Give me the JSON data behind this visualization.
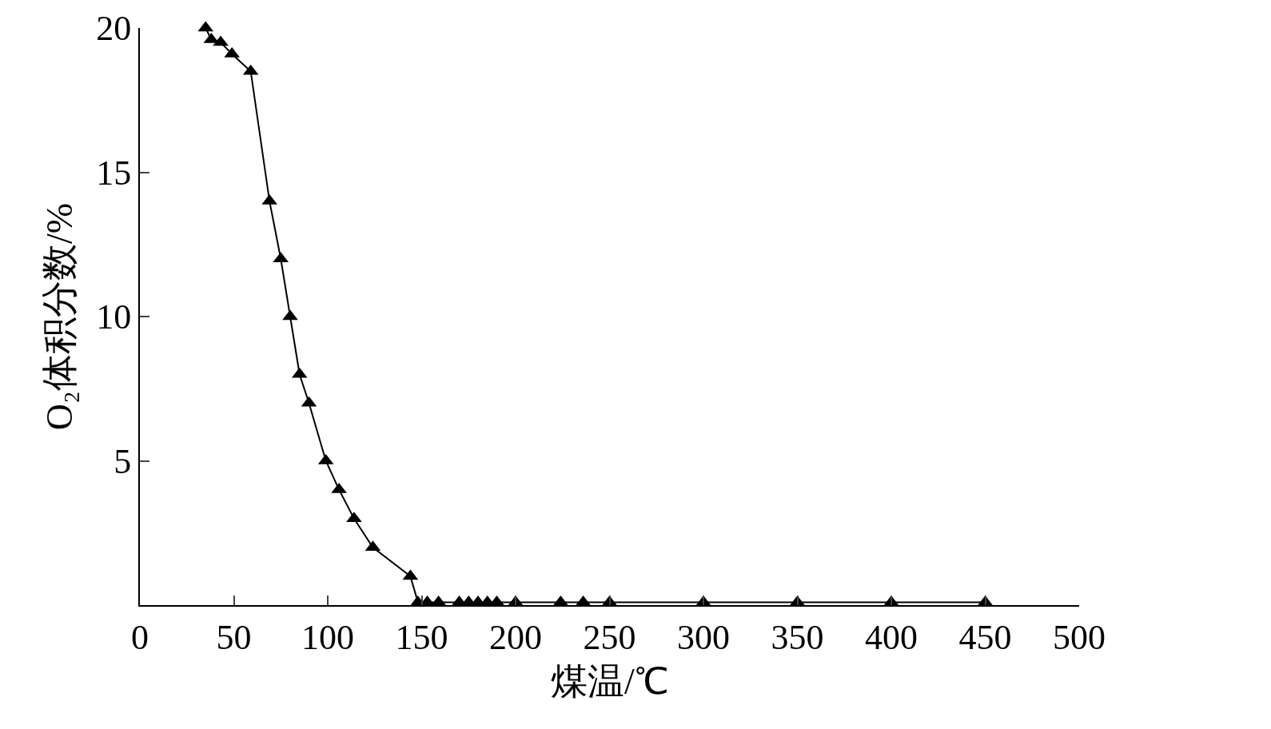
{
  "chart_data": {
    "type": "line",
    "xlabel": "煤温/℃",
    "ylabel": "O₂体积分数/%",
    "x": [
      35,
      38,
      43,
      49,
      59,
      69,
      75,
      80,
      85,
      90,
      99,
      106,
      114,
      124,
      144,
      148,
      153,
      159,
      170,
      175,
      180,
      185,
      190,
      200,
      224,
      236,
      250,
      300,
      350,
      400,
      450
    ],
    "series": [
      {
        "color": "#000000",
        "values": [
          20,
          19.6,
          19.5,
          19.1,
          18.5,
          14,
          12,
          10,
          8,
          7,
          5,
          4,
          3,
          2,
          1,
          0.1,
          0.1,
          0.1,
          0.1,
          0.1,
          0.1,
          0.1,
          0.1,
          0.1,
          0.1,
          0.1,
          0.1,
          0.1,
          0.1,
          0.1,
          0.1
        ]
      }
    ],
    "xlim": [
      0,
      500
    ],
    "xticks": [
      0,
      50,
      100,
      150,
      200,
      250,
      300,
      350,
      400,
      450,
      500
    ],
    "ylim": [
      0,
      20
    ],
    "yticks": [
      5,
      10,
      15,
      20
    ],
    "marker": "triangle",
    "line_style": "solid",
    "legend": false
  }
}
